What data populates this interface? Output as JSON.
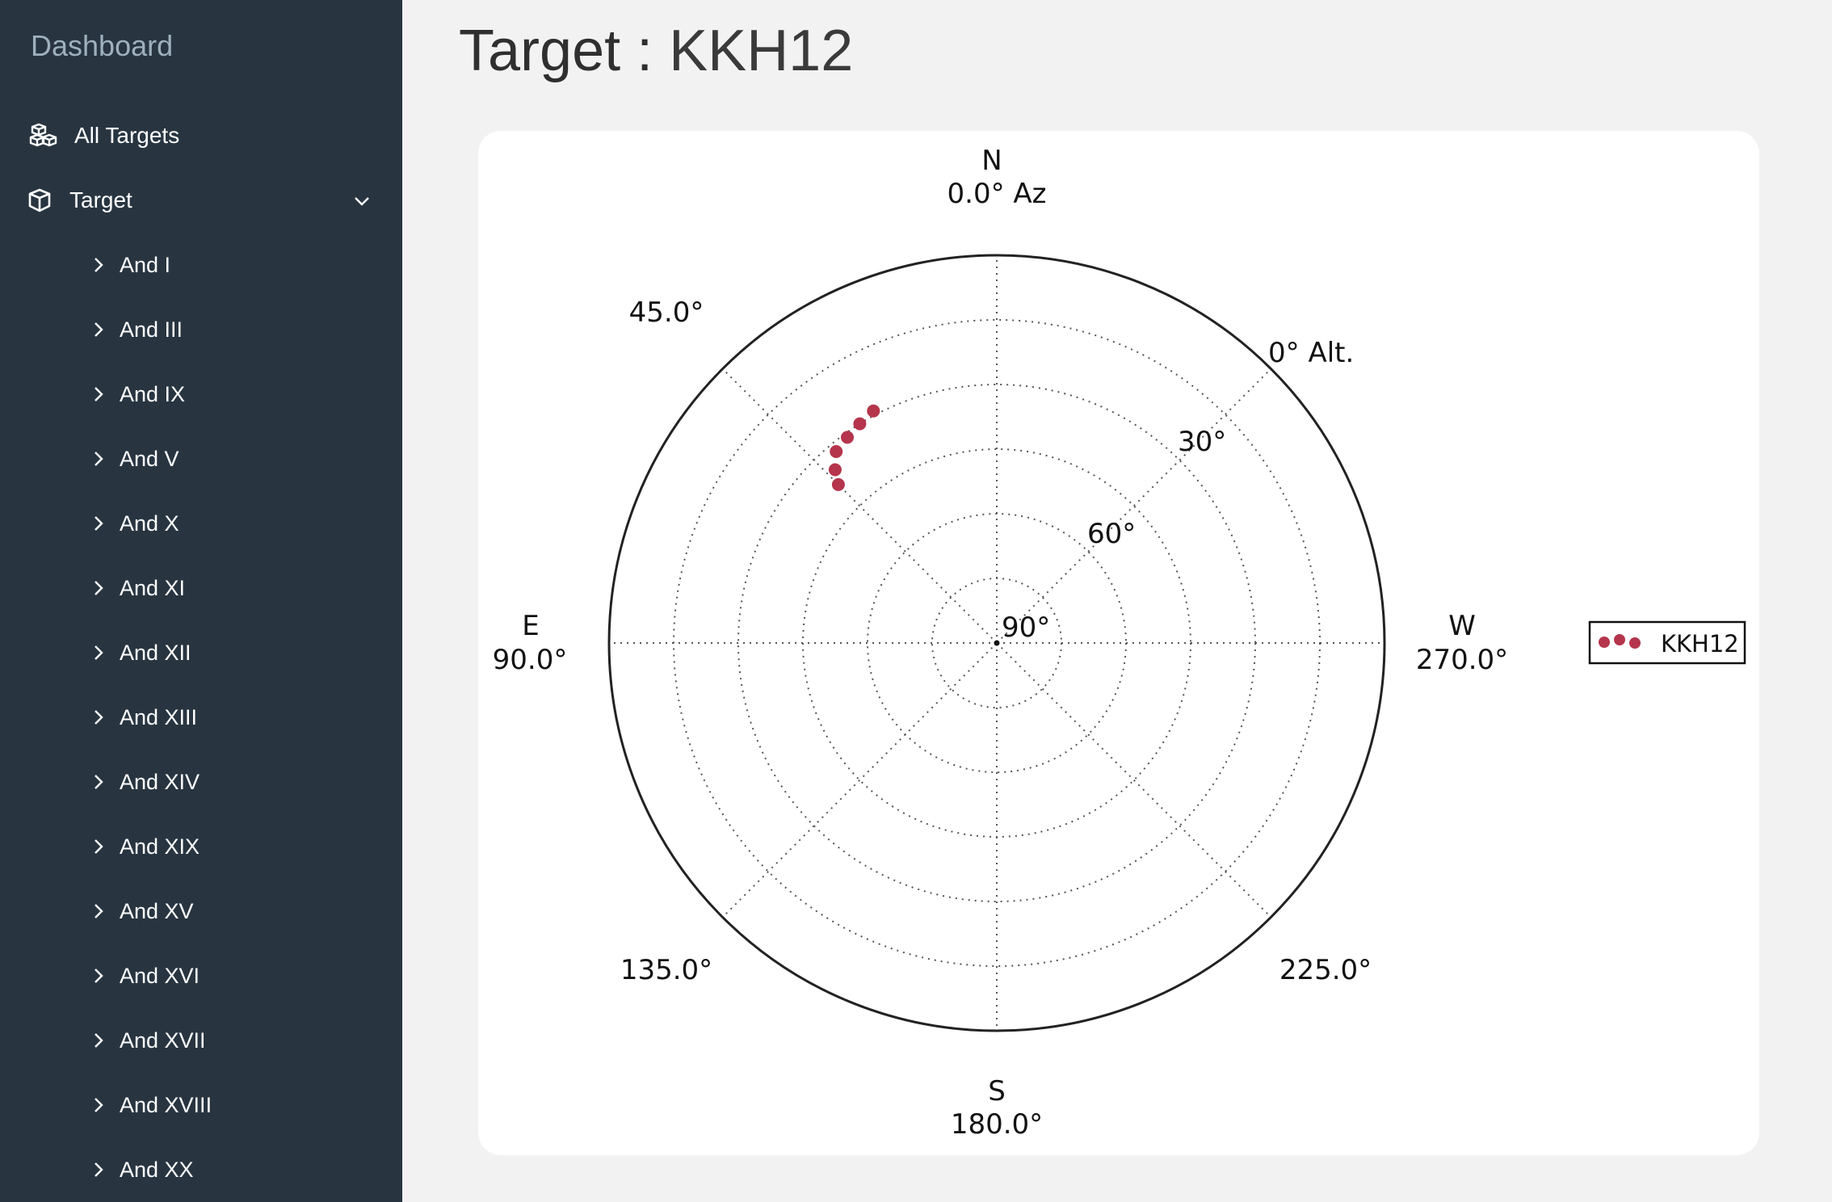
{
  "sidebar": {
    "brand": "Dashboard",
    "all_targets_label": "All Targets",
    "target_label": "Target",
    "items": [
      {
        "label": "And I"
      },
      {
        "label": "And III"
      },
      {
        "label": "And IX"
      },
      {
        "label": "And V"
      },
      {
        "label": "And X"
      },
      {
        "label": "And XI"
      },
      {
        "label": "And XII"
      },
      {
        "label": "And XIII"
      },
      {
        "label": "And XIV"
      },
      {
        "label": "And XIX"
      },
      {
        "label": "And XV"
      },
      {
        "label": "And XVI"
      },
      {
        "label": "And XVII"
      },
      {
        "label": "And XVIII"
      },
      {
        "label": "And XX"
      }
    ]
  },
  "page": {
    "title_prefix": "Target :",
    "title_name": "KKH12"
  },
  "chart_data": {
    "type": "scatter",
    "projection": "polar (azimuth / altitude sky plot)",
    "direction_labels": {
      "n": "N",
      "n_deg": "0.0° Az",
      "e": "E",
      "e_deg": "90.0°",
      "s": "S",
      "s_deg": "180.0°",
      "w": "W",
      "w_deg": "270.0°",
      "ne": "45.0°",
      "se": "135.0°",
      "sw": "225.0°"
    },
    "radial_labels": {
      "alt0": "0° Alt.",
      "alt30": "30°",
      "alt60": "60°",
      "alt90": "90°"
    },
    "altitude_range": [
      0,
      90
    ],
    "grid": true,
    "legend_position": "right",
    "marker_color": "#b5354c",
    "series": [
      {
        "name": "KKH12",
        "points": [
          {
            "az": 28,
            "alt": 29
          },
          {
            "az": 32,
            "alt": 30
          },
          {
            "az": 36,
            "alt": 31
          },
          {
            "az": 40,
            "alt": 32
          },
          {
            "az": 43,
            "alt": 35
          },
          {
            "az": 45,
            "alt": 38
          }
        ]
      }
    ]
  }
}
